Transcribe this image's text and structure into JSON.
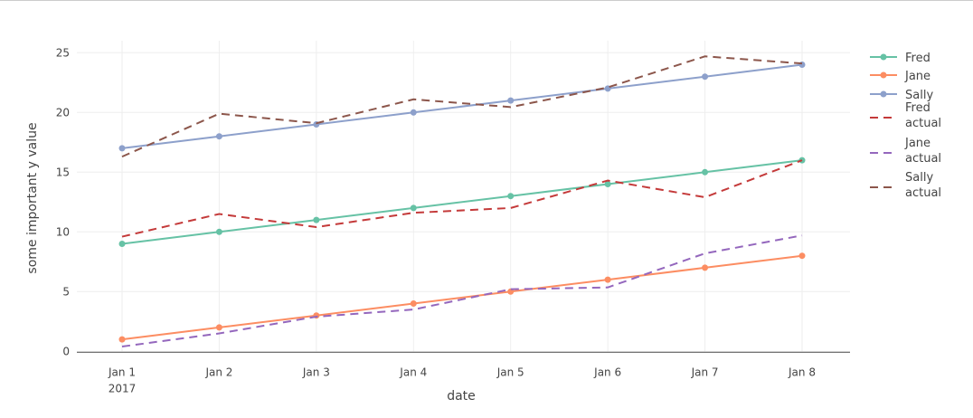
{
  "chart_data": {
    "type": "line",
    "title": "",
    "xlabel": "date",
    "ylabel": "some important y value",
    "categories": [
      "Jan 1",
      "Jan 2",
      "Jan 3",
      "Jan 4",
      "Jan 5",
      "Jan 6",
      "Jan 7",
      "Jan 8"
    ],
    "x_year_label": "2017",
    "ylim": [
      0,
      26
    ],
    "yticks": [
      0,
      5,
      10,
      15,
      20,
      25
    ],
    "grid": true,
    "legend_position": "right",
    "series": [
      {
        "name": "Fred",
        "color": "#66c2a5",
        "dash": false,
        "markers": true,
        "values": [
          9,
          10,
          11,
          12,
          13,
          14,
          15,
          16
        ]
      },
      {
        "name": "Jane",
        "color": "#fc8d62",
        "dash": false,
        "markers": true,
        "values": [
          1,
          2,
          3,
          4,
          5,
          6,
          7,
          8
        ]
      },
      {
        "name": "Sally",
        "color": "#8da0cb",
        "dash": false,
        "markers": true,
        "values": [
          17,
          18,
          19,
          20,
          21,
          22,
          23,
          24
        ]
      },
      {
        "name": "Fred actual",
        "legend_lines": [
          "Fred",
          "actual"
        ],
        "color": "#c43a3a",
        "dash": true,
        "markers": false,
        "values": [
          9.6,
          11.5,
          10.4,
          11.6,
          12.0,
          14.3,
          12.9,
          16.0
        ]
      },
      {
        "name": "Jane actual",
        "legend_lines": [
          "Jane",
          "actual"
        ],
        "color": "#9467bd",
        "dash": true,
        "markers": false,
        "values": [
          0.4,
          1.5,
          2.9,
          3.5,
          5.2,
          5.35,
          8.2,
          9.7
        ]
      },
      {
        "name": "Sally actual",
        "legend_lines": [
          "Sally",
          "actual"
        ],
        "color": "#8c564b",
        "dash": true,
        "markers": false,
        "values": [
          16.3,
          19.9,
          19.1,
          21.1,
          20.45,
          22.1,
          24.7,
          24.1
        ]
      }
    ]
  }
}
